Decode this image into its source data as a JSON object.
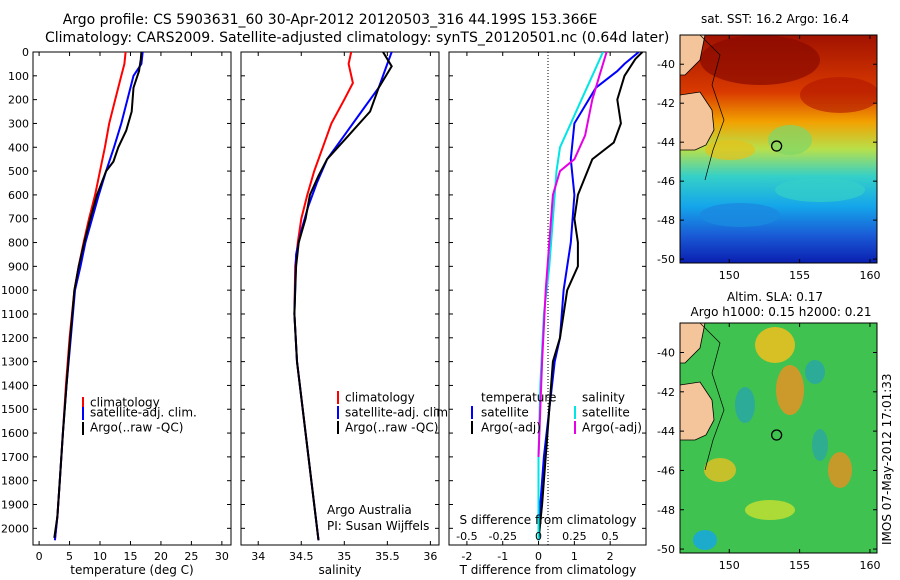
{
  "title_line1": "Argo profile: CS 5903631_60 30-Apr-2012 20120503_316 44.199S 153.366E",
  "title_line2": "Climatology: CARS2009. Satellite-adjusted climatology: synTS_20120501.nc (0.64d later)",
  "watermark": "IMOS 07-May-2012 17:01:33",
  "colors": {
    "climatology": "#ff0000",
    "satellite": "#0000ff",
    "argo": "#000000",
    "satellite_salinity": "#00e5e5",
    "argo_salinity": "#e600e6"
  },
  "chart_data": [
    {
      "type": "line",
      "panel": "temperature",
      "xlabel": "temperature (deg C)",
      "ylabel": "",
      "xlim": [
        -1,
        31.5
      ],
      "ylim": [
        2070,
        0
      ],
      "x_ticks": [
        0,
        5,
        10,
        15,
        20,
        25,
        30
      ],
      "y_ticks": [
        0,
        100,
        200,
        300,
        400,
        500,
        600,
        700,
        800,
        900,
        1000,
        1100,
        1200,
        1300,
        1400,
        1500,
        1600,
        1700,
        1800,
        1900,
        2000
      ],
      "legend": [
        "climatology",
        "satellite-adj. clim.",
        "Argo(..raw -QC)"
      ],
      "series": [
        {
          "name": "climatology",
          "color": "#ff0000",
          "x": [
            14.2,
            14.0,
            13.5,
            12.5,
            11.5,
            10.8,
            10.0,
            9.2,
            8.2,
            7.3,
            6.5,
            5.8,
            5.0,
            4.4,
            3.9,
            3.4,
            3.0,
            2.6
          ],
          "y": [
            0,
            50,
            100,
            200,
            300,
            400,
            500,
            600,
            700,
            800,
            900,
            1000,
            1200,
            1400,
            1600,
            1800,
            1950,
            2050
          ]
        },
        {
          "name": "satellite-adj. clim.",
          "color": "#0000ff",
          "x": [
            17.0,
            16.8,
            15.5,
            14.5,
            13.5,
            12.3,
            11.0,
            9.8,
            8.7,
            7.6,
            6.8,
            5.9,
            5.2,
            4.5,
            3.9,
            3.4,
            3.0,
            2.6
          ],
          "y": [
            0,
            50,
            100,
            200,
            300,
            400,
            500,
            600,
            700,
            800,
            900,
            1000,
            1200,
            1400,
            1600,
            1800,
            1950,
            2050
          ]
        },
        {
          "name": "Argo(..raw -QC)",
          "color": "#000000",
          "x": [
            16.8,
            16.7,
            16.4,
            15.5,
            15.2,
            14.3,
            13.0,
            12.2,
            11.0,
            9.5,
            8.4,
            7.4,
            6.5,
            5.8,
            5.1,
            4.5,
            3.9,
            3.4,
            3.0,
            2.5
          ],
          "y": [
            0,
            30,
            80,
            150,
            250,
            330,
            400,
            460,
            500,
            600,
            700,
            800,
            900,
            1000,
            1200,
            1400,
            1600,
            1800,
            1950,
            2040
          ]
        }
      ]
    },
    {
      "type": "line",
      "panel": "salinity",
      "xlabel": "salinity",
      "ylabel": "",
      "xlim": [
        33.8,
        36.1
      ],
      "ylim": [
        2070,
        0
      ],
      "x_ticks": [
        34,
        34.5,
        35,
        35.5,
        36
      ],
      "legend": [
        "climatology",
        "satellite-adj. clim.",
        "Argo(..raw -QC)"
      ],
      "annotation": [
        "Argo Australia",
        "PI: Susan Wijffels"
      ],
      "series": [
        {
          "name": "climatology",
          "color": "#ff0000",
          "x": [
            35.08,
            35.05,
            35.1,
            35.0,
            34.85,
            34.75,
            34.65,
            34.57,
            34.5,
            34.46,
            34.43,
            34.42,
            34.45,
            34.55,
            34.65,
            34.7
          ],
          "y": [
            0,
            50,
            130,
            200,
            300,
            400,
            500,
            600,
            700,
            800,
            900,
            1100,
            1300,
            1600,
            1900,
            2050
          ]
        },
        {
          "name": "satellite-adj. clim.",
          "color": "#0000ff",
          "x": [
            35.55,
            35.5,
            35.4,
            35.2,
            35.0,
            34.8,
            34.68,
            34.58,
            34.5,
            34.44,
            34.42,
            34.45,
            34.55,
            34.65,
            34.7
          ],
          "y": [
            0,
            50,
            150,
            250,
            350,
            450,
            550,
            650,
            750,
            850,
            1100,
            1300,
            1600,
            1900,
            2050
          ]
        },
        {
          "name": "Argo(..raw -QC)",
          "color": "#000000",
          "x": [
            35.45,
            35.55,
            35.4,
            35.3,
            35.05,
            34.8,
            34.7,
            34.6,
            34.55,
            34.47,
            34.44,
            34.42,
            34.45,
            34.55,
            34.65,
            34.7
          ],
          "y": [
            0,
            60,
            150,
            250,
            350,
            450,
            520,
            600,
            700,
            800,
            900,
            1100,
            1300,
            1600,
            1900,
            2050
          ]
        }
      ]
    },
    {
      "type": "line",
      "panel": "difference",
      "xlabel": "T difference from climatology",
      "x2label": "S difference from climatology",
      "xlim": [
        -2.5,
        3.0
      ],
      "ylim": [
        2070,
        0
      ],
      "x_ticks": [
        -2,
        -1,
        0,
        1,
        2
      ],
      "x2_tick_labels": [
        "-0.5",
        "-0.25",
        "0",
        "0.25",
        "0.5"
      ],
      "legend_titles": [
        "temperature",
        "salinity"
      ],
      "legend": [
        "satellite",
        "Argo(-adj)",
        "satellite",
        "Argo(-adj)"
      ],
      "series": [
        {
          "name": "satellite",
          "group": "temperature",
          "color": "#0000ff",
          "x": [
            2.8,
            2.4,
            2.2,
            1.6,
            1.0,
            0.9,
            1.0,
            0.9,
            0.8,
            0.7,
            0.6,
            0.45,
            0.3,
            0.15,
            0.05,
            0.0
          ],
          "y": [
            0,
            50,
            80,
            150,
            300,
            450,
            600,
            800,
            900,
            1000,
            1200,
            1300,
            1500,
            1700,
            1900,
            2050
          ]
        },
        {
          "name": "Argo(-adj)",
          "group": "temperature",
          "color": "#000000",
          "x": [
            2.9,
            2.7,
            2.4,
            2.2,
            2.3,
            2.1,
            1.5,
            1.1,
            1.0,
            1.1,
            1.1,
            0.8,
            0.6,
            0.4,
            0.3,
            0.2,
            0.1,
            0.0
          ],
          "y": [
            0,
            30,
            100,
            200,
            300,
            380,
            450,
            600,
            700,
            800,
            900,
            1000,
            1200,
            1300,
            1500,
            1700,
            1900,
            2050
          ]
        },
        {
          "name": "satellite",
          "group": "salinity",
          "color": "#00e5e5",
          "x": [
            1.8,
            1.5,
            1.2,
            0.9,
            0.6,
            0.5,
            0.4,
            0.3,
            0.15,
            0.05,
            0.0,
            0.0
          ],
          "y": [
            0,
            100,
            200,
            300,
            400,
            500,
            700,
            900,
            1100,
            1400,
            1700,
            2050
          ]
        },
        {
          "name": "Argo(-adj)",
          "group": "salinity",
          "color": "#e600e6",
          "x": [
            1.9,
            1.7,
            1.5,
            1.3,
            1.0,
            0.6,
            0.4,
            0.3,
            0.2,
            0.1,
            0.0
          ],
          "y": [
            0,
            100,
            200,
            350,
            450,
            500,
            600,
            800,
            1000,
            1300,
            1700
          ]
        }
      ]
    },
    {
      "type": "heatmap",
      "panel": "sst_map",
      "title": "sat. SST: 16.2 Argo: 16.4",
      "xlim": [
        146.5,
        160.5
      ],
      "ylim": [
        -50.2,
        -38.5
      ],
      "x_ticks": [
        150,
        155,
        160
      ],
      "y_ticks": [
        -40,
        -42,
        -44,
        -46,
        -48,
        -50
      ],
      "marker": {
        "lon": 153.366,
        "lat": -44.199
      }
    },
    {
      "type": "heatmap",
      "panel": "sla_map",
      "title_line1": "Altim. SLA: 0.17",
      "title_line2": "Argo h1000: 0.15 h2000: 0.21",
      "xlim": [
        146.5,
        160.5
      ],
      "ylim": [
        -50.2,
        -38.5
      ],
      "x_ticks": [
        150,
        155,
        160
      ],
      "y_ticks": [
        -40,
        -42,
        -44,
        -46,
        -48,
        -50
      ],
      "marker": {
        "lon": 153.366,
        "lat": -44.199
      }
    }
  ]
}
